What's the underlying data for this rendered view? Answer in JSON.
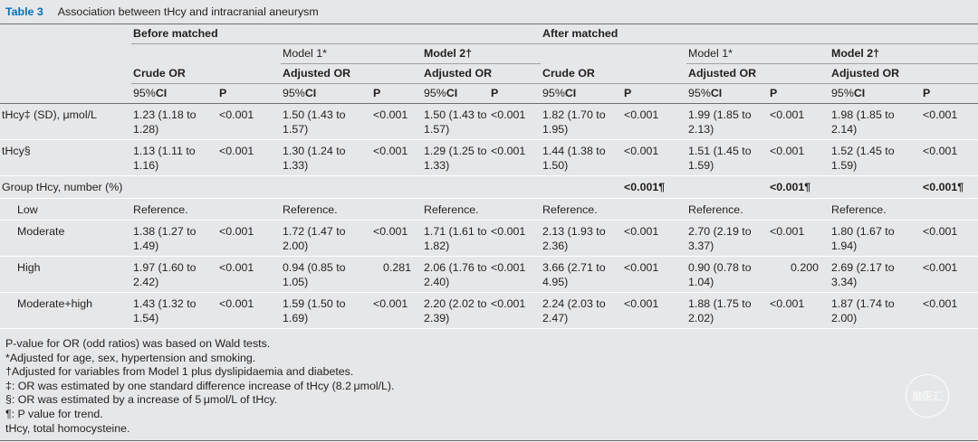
{
  "title": {
    "label": "Table 3",
    "text": "Association between tHcy and intracranial aneurysm"
  },
  "headers": {
    "before": "Before matched",
    "after": "After matched",
    "model1": "Model 1*",
    "model2": "Model 2†",
    "crude": "Crude OR",
    "adjusted": "Adjusted OR",
    "ci_prefix": "95%",
    "ci": "CI",
    "p": "P"
  },
  "rows": [
    {
      "label": "tHcy‡ (SD), μmol/L",
      "cells": [
        "1.23 (1.18 to 1.28)",
        "<0.001",
        "1.50 (1.43 to 1.57)",
        "<0.001",
        "1.50 (1.43 to 1.57)",
        "<0.001",
        "1.82 (1.70 to 1.95)",
        "<0.001",
        "1.99 (1.85 to 2.13)",
        "<0.001",
        "1.98 (1.85 to 2.14)",
        "<0.001"
      ]
    },
    {
      "label": "tHcy§",
      "cells": [
        "1.13 (1.11 to 1.16)",
        "<0.001",
        "1.30 (1.24 to 1.33)",
        "<0.001",
        "1.29 (1.25 to 1.33)",
        "<0.001",
        "1.44 (1.38 to 1.50)",
        "<0.001",
        "1.51 (1.45 to 1.59)",
        "<0.001",
        "1.52 (1.45 to 1.59)",
        "<0.001"
      ]
    },
    {
      "label": "Group tHcy, number (%)",
      "cells": [
        "",
        "",
        "",
        "",
        "",
        "",
        "",
        "<0.001¶",
        "",
        "<0.001¶",
        "",
        "<0.001¶"
      ]
    },
    {
      "label": "Low",
      "cells": [
        "Reference.",
        "",
        "Reference.",
        "",
        "Reference.",
        "",
        "Reference.",
        "",
        "Reference.",
        "",
        "Reference.",
        ""
      ]
    },
    {
      "label": "Moderate",
      "cells": [
        "1.38 (1.27 to 1.49)",
        "<0.001",
        "1.72 (1.47 to 2.00)",
        "<0.001",
        "1.71 (1.61 to 1.82)",
        "<0.001",
        "2.13 (1.93 to 2.36)",
        "<0.001",
        "2.70 (2.19 to 3.37)",
        "<0.001",
        "1.80 (1.67 to 1.94)",
        "<0.001"
      ]
    },
    {
      "label": "High",
      "cells": [
        "1.97 (1.60 to 2.42)",
        "<0.001",
        "0.94 (0.85 to 1.05)",
        "0.281",
        "2.06 (1.76 to 2.40)",
        "<0.001",
        "3.66 (2.71 to 4.95)",
        "<0.001",
        "0.90 (0.78 to 1.04)",
        "0.200",
        "2.69 (2.17 to 3.34)",
        "<0.001"
      ]
    },
    {
      "label": "Moderate+high",
      "cells": [
        "1.43 (1.32 to 1.54)",
        "<0.001",
        "1.59 (1.50 to 1.69)",
        "<0.001",
        "2.20 (2.02 to 2.39)",
        "<0.001",
        "2.24 (2.03 to 2.47)",
        "<0.001",
        "1.88 (1.75 to 2.02)",
        "<0.001",
        "1.87 (1.74 to 2.00)",
        "<0.001"
      ]
    }
  ],
  "footnotes": [
    "P-value for OR (odd ratios) was based on Wald tests.",
    "*Adjusted for age, sex, hypertension and smoking.",
    "†Adjusted for variables from Model 1 plus dyslipidaemia and diabetes.",
    "‡: OR was estimated by one standard difference increase of tHcy (8.2 μmol/L).",
    "§: OR was estimated by a increase of 5 μmol/L of tHcy.",
    "¶: P value for trend.",
    "tHcy, total homocysteine."
  ],
  "watermark": "脑医汇"
}
